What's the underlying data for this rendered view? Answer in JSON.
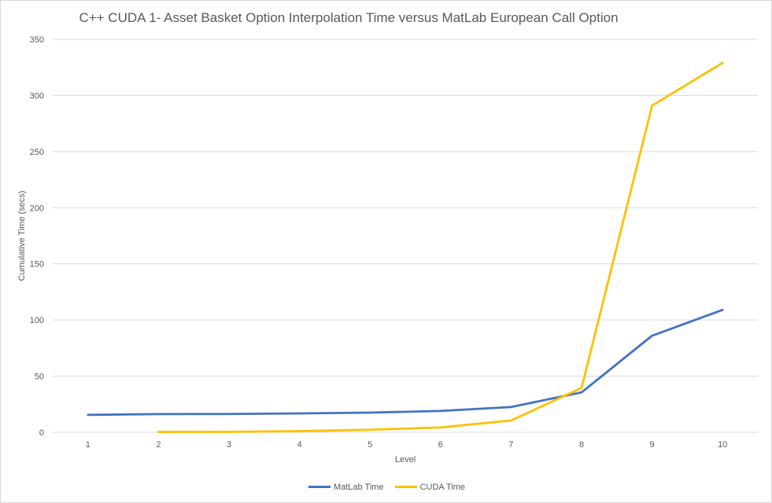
{
  "chart_data": {
    "type": "line",
    "title": "C++ CUDA 1- Asset Basket Option Interpolation Time versus MatLab European Call Option",
    "xlabel": "Level",
    "ylabel": "Cumulative Time (secs)",
    "categories": [
      "1",
      "2",
      "3",
      "4",
      "5",
      "6",
      "7",
      "8",
      "9",
      "10"
    ],
    "ylim": [
      0,
      350
    ],
    "yticks": [
      0,
      50,
      100,
      150,
      200,
      250,
      300,
      350
    ],
    "grid": true,
    "legend_position": "bottom",
    "series": [
      {
        "name": "MatLab Time",
        "color": "#4472c4",
        "values": [
          15.5,
          16.2,
          16.3,
          16.8,
          17.5,
          19,
          22.5,
          35.5,
          86,
          109
        ]
      },
      {
        "name": "CUDA Time",
        "color": "#ffc000",
        "values": [
          null,
          0.3,
          0.4,
          1,
          2.3,
          4.3,
          10.5,
          39.5,
          291,
          329
        ]
      }
    ]
  }
}
